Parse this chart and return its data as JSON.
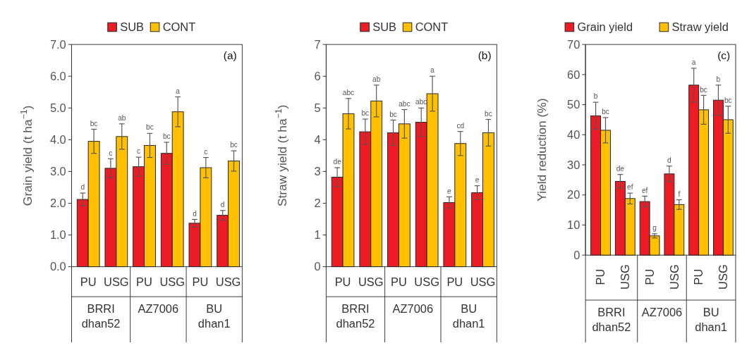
{
  "chart_data": [
    {
      "type": "bar",
      "ylabel": "Grain yield (t ha$^{−1}$)",
      "categories": [
        "PU",
        "USG",
        "PU",
        "USG",
        "PU",
        "USG"
      ],
      "legend": "top",
      "ylim": [
        0,
        7
      ],
      "yticks": [
        {
          "value": 0,
          "label": "0.0"
        },
        {
          "value": 1,
          "label": "1.0"
        },
        {
          "value": 2,
          "label": "2.0"
        },
        {
          "value": 3,
          "label": "3.0"
        },
        {
          "value": 4,
          "label": "4.0"
        },
        {
          "value": 5,
          "label": "5.0"
        },
        {
          "value": 6,
          "label": "6.0"
        },
        {
          "value": 7,
          "label": "7.0"
        }
      ],
      "annotations": [
        "(a)",
        "BRRI dhan52",
        "AZ7006",
        "BU dhan1"
      ],
      "series": [
        {
          "name": "SUB",
          "color": "#ed1c24",
          "values": [
            2.12,
            3.1,
            3.15,
            3.57,
            1.37,
            1.62
          ],
          "errors": [
            0.2,
            0.3,
            0.3,
            0.35,
            0.12,
            0.15
          ],
          "value_labels": [
            "d",
            "c",
            "c",
            "bc",
            "d",
            "d"
          ]
        },
        {
          "name": "CONT",
          "color": "#ffc000",
          "values": [
            3.95,
            4.1,
            3.82,
            4.88,
            3.12,
            3.33
          ],
          "errors": [
            0.38,
            0.4,
            0.38,
            0.47,
            0.32,
            0.32
          ],
          "value_labels": [
            "bc",
            "ab",
            "bc",
            "a",
            "c",
            "bc"
          ]
        }
      ]
    },
    {
      "type": "bar",
      "ylabel": "Straw yield (t ha$^{−1}$)",
      "categories": [
        "PU",
        "USG",
        "PU",
        "USG",
        "PU",
        "USG"
      ],
      "legend": "top",
      "ylim": [
        0,
        7
      ],
      "yticks": [
        0,
        1,
        2,
        3,
        4,
        5,
        6,
        7
      ],
      "annotations": [
        "(b)",
        "BRRI dhan52",
        "AZ7006",
        "BU dhan1"
      ],
      "series": [
        {
          "name": "SUB",
          "color": "#ed1c24",
          "values": [
            2.82,
            4.25,
            4.22,
            4.55,
            2.02,
            2.33
          ],
          "errors": [
            0.3,
            0.4,
            0.4,
            0.45,
            0.18,
            0.22
          ],
          "value_labels": [
            "de",
            "bc",
            "bc",
            "abc",
            "e",
            "e"
          ]
        },
        {
          "name": "CONT",
          "color": "#ffc000",
          "values": [
            4.82,
            5.22,
            4.5,
            5.45,
            3.88,
            4.22
          ],
          "errors": [
            0.48,
            0.5,
            0.45,
            0.55,
            0.38,
            0.42
          ],
          "value_labels": [
            "abc",
            "ab",
            "abc",
            "a",
            "cd",
            "bc"
          ]
        }
      ]
    },
    {
      "type": "bar",
      "ylabel": "Yield reduction (%)",
      "categories": [
        "PU",
        "USG",
        "PU",
        "USG",
        "PU",
        "USG"
      ],
      "legend": "top",
      "ylim": [
        0,
        70
      ],
      "yticks": [
        0,
        10,
        20,
        30,
        40,
        50,
        60,
        70
      ],
      "annotations": [
        "(c)",
        "BRRI dhan52",
        "AZ7006",
        "BU dhan1"
      ],
      "series": [
        {
          "name": "Grain yield",
          "color": "#ed1c24",
          "values": [
            46.3,
            24.5,
            17.8,
            27,
            56.5,
            51.5
          ],
          "errors": [
            4.5,
            2.3,
            1.8,
            2.6,
            5.6,
            5
          ],
          "value_labels": [
            "b",
            "de",
            "ef",
            "d",
            "a",
            "b"
          ]
        },
        {
          "name": "Straw yield",
          "color": "#ffc000",
          "values": [
            41.5,
            18.8,
            6.4,
            16.8,
            48.3,
            45
          ],
          "errors": [
            4.2,
            1.8,
            0.7,
            1.6,
            4.8,
            4.5
          ],
          "value_labels": [
            "bc",
            "ef",
            "g",
            "f",
            "bc",
            "bc"
          ]
        }
      ]
    }
  ]
}
